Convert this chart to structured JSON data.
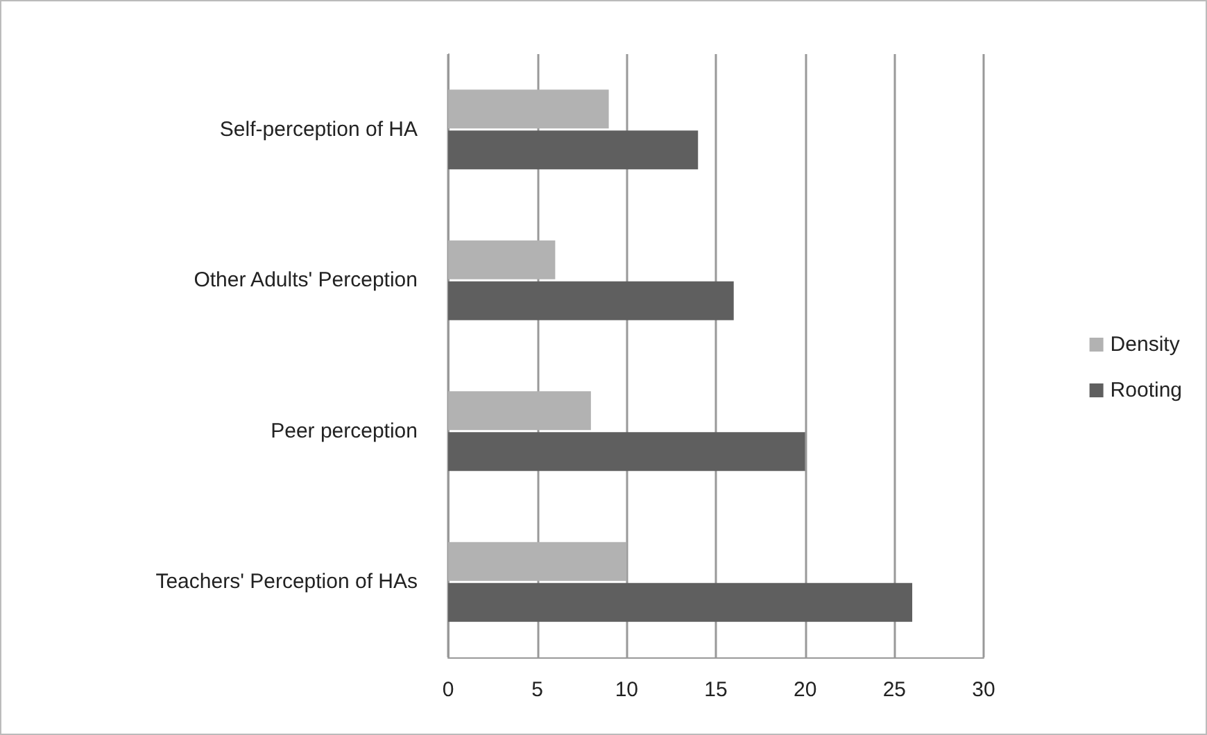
{
  "chart_data": {
    "type": "bar",
    "orientation": "horizontal",
    "categories": [
      "Self-perception of HA",
      "Other Adults' Perception",
      "Peer perception",
      "Teachers' Perception of HAs"
    ],
    "series": [
      {
        "name": "Density",
        "color": "#b2b2b2",
        "values": [
          9,
          6,
          8,
          10
        ]
      },
      {
        "name": "Rooting",
        "color": "#5f5f5f",
        "values": [
          14,
          16,
          20,
          26
        ]
      }
    ],
    "xlim": [
      0,
      30
    ],
    "xticks": [
      0,
      5,
      10,
      15,
      20,
      25,
      30
    ],
    "grid": "x",
    "legend": "right"
  }
}
